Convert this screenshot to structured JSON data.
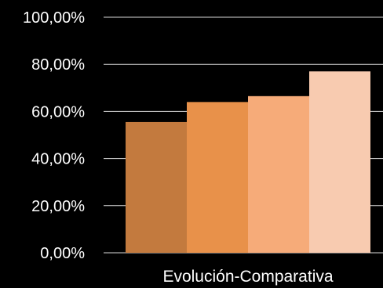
{
  "chart_data": {
    "type": "bar",
    "categories": [
      "Evolución-Comparativa"
    ],
    "series": [
      {
        "values": [
          0.555
        ]
      },
      {
        "values": [
          0.64
        ]
      },
      {
        "values": [
          0.665
        ]
      },
      {
        "values": [
          0.77
        ]
      }
    ],
    "colors": [
      "#c37a3e",
      "#e8914a",
      "#f6ab79",
      "#f8cbb0"
    ],
    "ylim": [
      0,
      1
    ],
    "yticks": [
      "0,00%",
      "20,00%",
      "40,00%",
      "60,00%",
      "80,00%",
      "100,00%"
    ],
    "ytick_values": [
      0,
      0.2,
      0.4,
      0.6,
      0.8,
      1.0
    ],
    "grid": true,
    "legend": "none",
    "title": "",
    "xlabel": "",
    "ylabel": "",
    "background": "#000000",
    "text_color": "#ffffff",
    "grid_color": "#d9d9d9"
  }
}
